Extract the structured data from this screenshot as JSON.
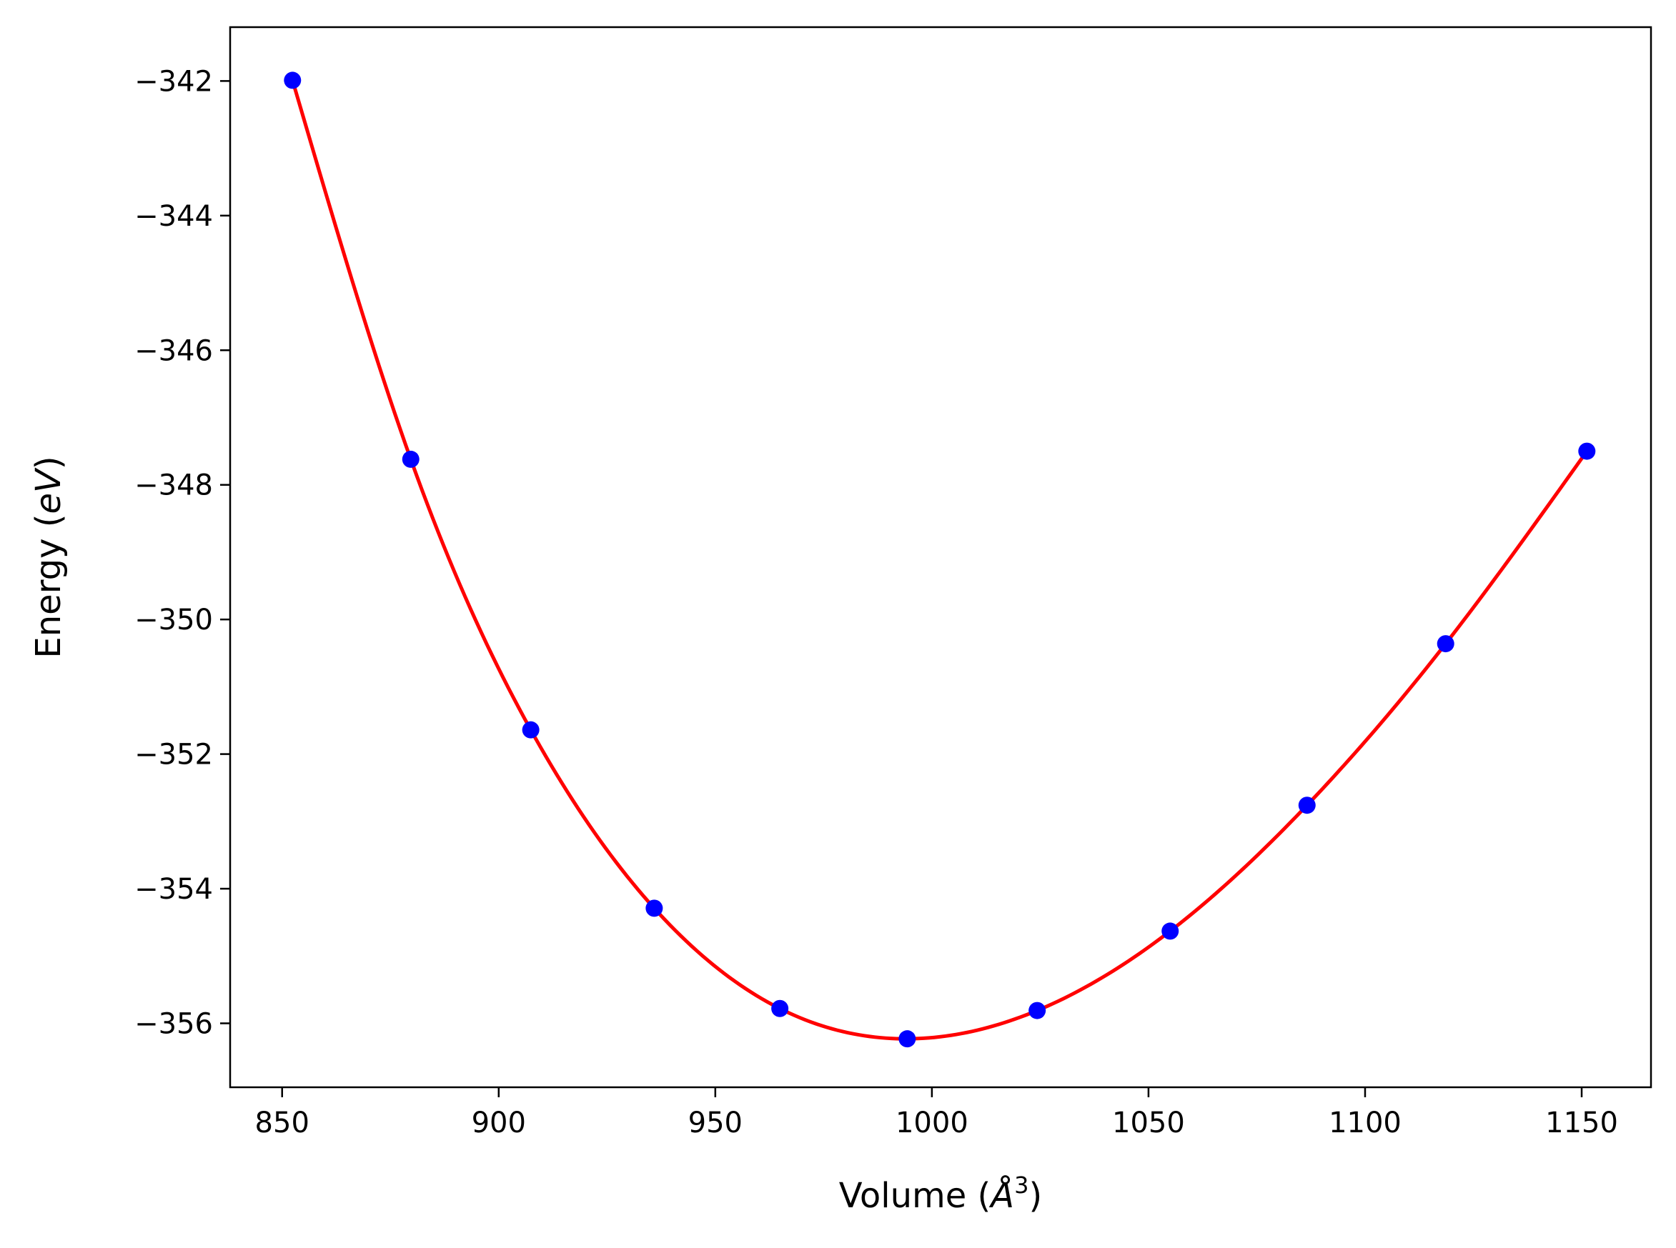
{
  "chart_data": {
    "type": "scatter",
    "title": "",
    "xlabel": {
      "prefix": "Volume (",
      "unit": "Å",
      "exponent": "3",
      "suffix": ")"
    },
    "ylabel": {
      "prefix": "Energy (",
      "unit": "eV",
      "suffix": ")"
    },
    "xlim": [
      838,
      1166
    ],
    "ylim": [
      -356.95,
      -341.2
    ],
    "xticks": [
      850,
      900,
      950,
      1000,
      1050,
      1100,
      1150
    ],
    "xtick_labels": [
      "850",
      "900",
      "950",
      "1000",
      "1050",
      "1100",
      "1150"
    ],
    "yticks": [
      -342,
      -344,
      -346,
      -348,
      -350,
      -352,
      -354,
      -356
    ],
    "ytick_labels": [
      "−342",
      "−344",
      "−346",
      "−348",
      "−350",
      "−352",
      "−354",
      "−356"
    ],
    "grid": false,
    "legend": "none",
    "series": [
      {
        "name": "data points",
        "kind": "markers",
        "color": "#0000ff",
        "x": [
          852.4,
          879.7,
          907.4,
          935.9,
          964.9,
          994.3,
          1024.3,
          1055.0,
          1086.6,
          1118.6,
          1151.2
        ],
        "y": [
          -341.99,
          -347.62,
          -351.64,
          -354.29,
          -355.78,
          -356.23,
          -355.81,
          -354.63,
          -352.76,
          -350.36,
          -347.5
        ]
      },
      {
        "name": "fit",
        "kind": "line",
        "color": "#ff0000",
        "x": [
          852.4,
          879.7,
          907.4,
          935.9,
          964.9,
          994.3,
          1024.3,
          1055.0,
          1086.6,
          1118.6,
          1151.2
        ],
        "y": [
          -341.99,
          -347.62,
          -351.64,
          -354.29,
          -355.78,
          -356.23,
          -355.81,
          -354.63,
          -352.76,
          -350.36,
          -347.5
        ]
      }
    ]
  }
}
